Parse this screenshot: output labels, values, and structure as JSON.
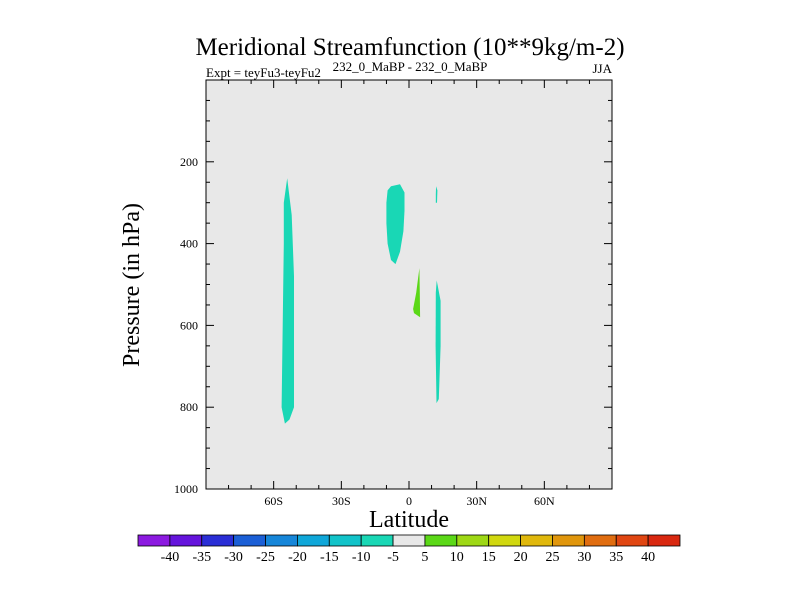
{
  "chart_data": {
    "type": "contour",
    "title": "Meridional Streamfunction (10**9kg/m-2)",
    "subtitle_left": "Expt = teyFu3-teyFu2",
    "subtitle_center": "232_0_MaBP - 232_0_MaBP",
    "subtitle_right": "JJA",
    "xlabel": "Latitude",
    "ylabel": "Pressure (in hPa)",
    "xlim": [
      -90,
      90
    ],
    "ylim": [
      1000,
      0
    ],
    "x_ticks": [
      {
        "value": -60,
        "label": "60S"
      },
      {
        "value": -30,
        "label": "30S"
      },
      {
        "value": 0,
        "label": "0"
      },
      {
        "value": 30,
        "label": "30N"
      },
      {
        "value": 60,
        "label": "60N"
      }
    ],
    "y_ticks": [
      {
        "value": 200,
        "label": "200"
      },
      {
        "value": 400,
        "label": "400"
      },
      {
        "value": 600,
        "label": "600"
      },
      {
        "value": 800,
        "label": "800"
      },
      {
        "value": 1000,
        "label": "1000"
      }
    ],
    "background_color": "#e8e8e8",
    "contour_regions": [
      {
        "name": "region-sh-midlat-negative",
        "level_range": [
          -10,
          -5
        ],
        "color": "#19d7b5",
        "polygon": [
          [
            -54,
            240
          ],
          [
            -52,
            330
          ],
          [
            -51,
            480
          ],
          [
            -51,
            800
          ],
          [
            -53,
            830
          ],
          [
            -55,
            840
          ],
          [
            -56.5,
            800
          ],
          [
            -56,
            600
          ],
          [
            -55.5,
            400
          ],
          [
            -55.5,
            300
          ]
        ]
      },
      {
        "name": "region-sh-tropics-negative",
        "level_range": [
          -10,
          -5
        ],
        "color": "#19d7b5",
        "polygon": [
          [
            -8,
            260
          ],
          [
            -4,
            255
          ],
          [
            -2,
            275
          ],
          [
            -2,
            320
          ],
          [
            -2.5,
            370
          ],
          [
            -4,
            420
          ],
          [
            -6,
            450
          ],
          [
            -8,
            440
          ],
          [
            -9.5,
            400
          ],
          [
            -10,
            350
          ],
          [
            -10,
            300
          ],
          [
            -9.5,
            270
          ]
        ]
      },
      {
        "name": "region-nh-tropics-thin-upper",
        "level_range": [
          -10,
          -5
        ],
        "color": "#19d7b5",
        "polygon": [
          [
            12,
            260
          ],
          [
            12.6,
            270
          ],
          [
            12.4,
            300
          ],
          [
            11.9,
            300
          ],
          [
            11.9,
            280
          ]
        ]
      },
      {
        "name": "region-nh-tropics-thin-lower",
        "level_range": [
          -10,
          -5
        ],
        "color": "#19d7b5",
        "polygon": [
          [
            12.3,
            490
          ],
          [
            14,
            540
          ],
          [
            14,
            650
          ],
          [
            13.2,
            780
          ],
          [
            12.2,
            790
          ],
          [
            11.8,
            650
          ],
          [
            11.9,
            520
          ]
        ]
      },
      {
        "name": "region-equator-positive",
        "level_range": [
          5,
          10
        ],
        "color": "#5bd817",
        "polygon": [
          [
            4.6,
            460
          ],
          [
            4.8,
            520
          ],
          [
            4.9,
            580
          ],
          [
            2.2,
            570
          ],
          [
            1.8,
            560
          ],
          [
            3.2,
            520
          ]
        ]
      }
    ],
    "colorbar": {
      "labels": [
        "-40",
        "-35",
        "-30",
        "-25",
        "-20",
        "-15",
        "-10",
        "-5",
        "5",
        "10",
        "15",
        "20",
        "25",
        "30",
        "35",
        "40"
      ],
      "colors": [
        "#8c1ae0",
        "#6514dc",
        "#2a2ed6",
        "#1b5fd6",
        "#1686d9",
        "#0fa7d9",
        "#12c3c9",
        "#19d7b5",
        "#e8e8e8",
        "#5bd817",
        "#9ed815",
        "#d1d80f",
        "#e0b80c",
        "#e0960c",
        "#e06d10",
        "#e04612",
        "#d92810"
      ]
    }
  }
}
